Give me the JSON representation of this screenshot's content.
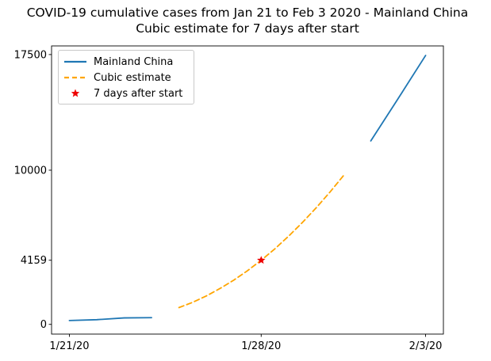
{
  "title": {
    "line1": "COVID-19 cumulative cases from Jan 21 to Feb 3 2020 - Mainland China",
    "line2": "Cubic estimate for 7 days after start"
  },
  "colors": {
    "actual_line": "#1f77b4",
    "estimate_line": "#ffa500",
    "marker": "#ee0000",
    "axis": "#000000",
    "tick_label": "#000000",
    "legend_border": "#c9c9c9",
    "background": "#ffffff"
  },
  "chart_data": {
    "type": "line",
    "title": "COVID-19 cumulative cases from Jan 21 to Feb 3 2020 - Mainland China / Cubic estimate for 7 days after start",
    "xlabel": "",
    "ylabel": "",
    "grid": false,
    "legend_position": "upper left",
    "x_axis": {
      "unit": "days since Jan 21 2020",
      "tick_days": [
        0,
        7,
        13
      ],
      "tick_labels": [
        "1/21/20",
        "1/28/20",
        "2/3/20"
      ],
      "range_days": [
        -0.65,
        13.65
      ]
    },
    "y_axis": {
      "unit": "cumulative cases",
      "tick_values": [
        0,
        4159,
        10000,
        17500
      ],
      "tick_labels": [
        "0",
        "4159",
        "10000",
        "17500"
      ],
      "range": [
        -630,
        18060
      ]
    },
    "series": [
      {
        "name": "Mainland China",
        "style": "solid",
        "color_key": "actual_line",
        "segments": [
          {
            "x_days": [
              0,
              1,
              2,
              3
            ],
            "y_cases": [
              250,
              305,
              420,
              435
            ]
          },
          {
            "x_days": [
              11,
              12,
              13
            ],
            "y_cases": [
              11900,
              14650,
              17440
            ]
          }
        ]
      },
      {
        "name": "Cubic estimate",
        "style": "dashed",
        "color_key": "estimate_line",
        "segments": [
          {
            "x_days": [
              4,
              4.5,
              5,
              5.5,
              6,
              6.5,
              7,
              7.5,
              8,
              8.5,
              9,
              9.5,
              10
            ],
            "y_cases": [
              1090,
              1430,
              1845,
              2330,
              2870,
              3480,
              4159,
              4900,
              5720,
              6600,
              7545,
              8560,
              9640
            ]
          }
        ]
      }
    ],
    "marker": {
      "name": "7 days after start",
      "shape": "star",
      "x_day": 7,
      "y_cases": 4159,
      "color_key": "marker"
    }
  },
  "legend": {
    "items": [
      {
        "label": "Mainland China"
      },
      {
        "label": "Cubic estimate"
      },
      {
        "label": "7 days after start"
      }
    ]
  }
}
